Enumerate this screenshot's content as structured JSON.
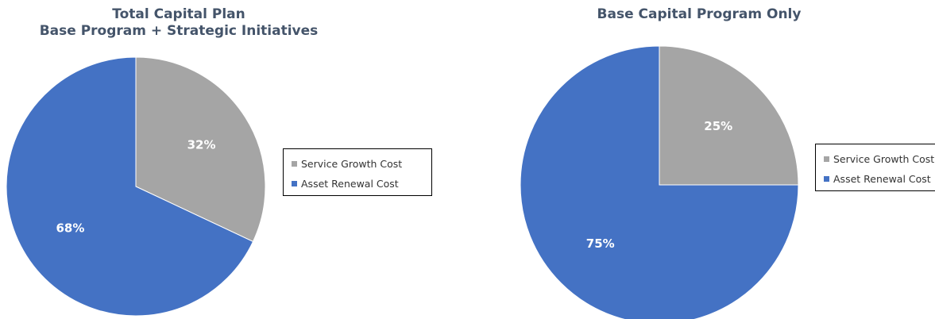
{
  "chart_data": [
    {
      "type": "pie",
      "title": [
        "Total Capital Plan",
        "Base Program + Strategic Initiatives"
      ],
      "slices": [
        {
          "name": "Service Growth Cost",
          "value": 32,
          "label": "32%",
          "color": "#a5a5a5"
        },
        {
          "name": "Asset Renewal Cost",
          "value": 68,
          "label": "68%",
          "color": "#4472c4"
        }
      ],
      "legend": [
        "Service Growth Cost",
        "Asset Renewal Cost"
      ],
      "legend_position": "right"
    },
    {
      "type": "pie",
      "title": [
        "Base Capital Program Only"
      ],
      "slices": [
        {
          "name": "Service Growth Cost",
          "value": 25,
          "label": "25%",
          "color": "#a5a5a5"
        },
        {
          "name": "Asset Renewal Cost",
          "value": 75,
          "label": "75%",
          "color": "#4472c4"
        }
      ],
      "legend": [
        "Service Growth Cost",
        "Asset Renewal Cost"
      ],
      "legend_position": "right"
    }
  ]
}
